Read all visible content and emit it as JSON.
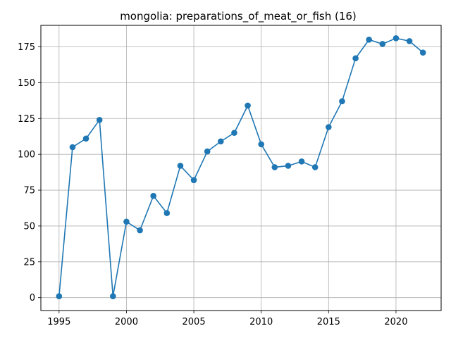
{
  "chart_data": {
    "type": "line",
    "title": "mongolia: preparations_of_meat_or_fish (16)",
    "xlabel": "",
    "ylabel": "",
    "x": [
      1995,
      1996,
      1997,
      1998,
      1999,
      2000,
      2001,
      2002,
      2003,
      2004,
      2005,
      2006,
      2007,
      2008,
      2009,
      2010,
      2011,
      2012,
      2013,
      2014,
      2015,
      2016,
      2017,
      2018,
      2019,
      2020,
      2021,
      2022
    ],
    "series": [
      {
        "values": [
          1,
          105,
          111,
          124,
          1,
          53,
          47,
          71,
          59,
          92,
          82,
          102,
          109,
          115,
          134,
          107,
          91,
          92,
          95,
          91,
          119,
          137,
          167,
          180,
          177,
          181,
          179,
          171
        ],
        "color": "#1f77b4",
        "marker": "circle"
      }
    ],
    "xlim": [
      1993.65,
      2023.35
    ],
    "ylim": [
      -9,
      190
    ],
    "xticks": [
      1995,
      2000,
      2005,
      2010,
      2015,
      2020
    ],
    "yticks": [
      0,
      25,
      50,
      75,
      100,
      125,
      150,
      175
    ],
    "grid": true,
    "legend": "none"
  }
}
